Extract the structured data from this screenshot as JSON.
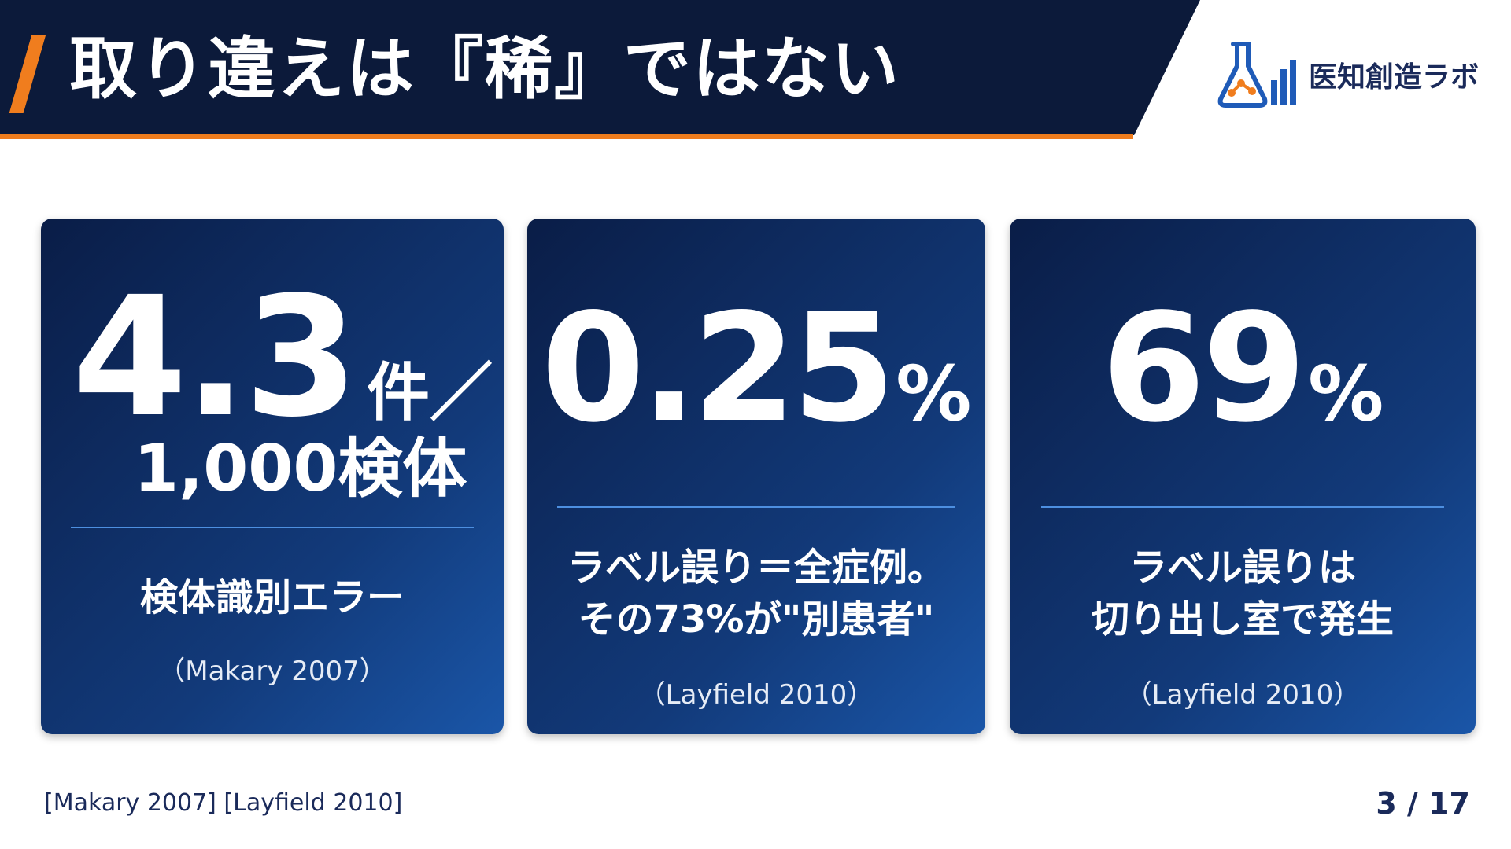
{
  "header": {
    "title": "取り違えは『稀』ではない",
    "accent_color": "#f07d1e",
    "bg_color": "#0c1a3a"
  },
  "brand": {
    "name": "医知創造ラボ",
    "icon": "flask-chart-logo"
  },
  "cards": [
    {
      "stat_number": "4.3",
      "stat_unit": "件／",
      "stat_sub": "1,000検体",
      "description": "検体識別エラー",
      "citation": "（Makary 2007）"
    },
    {
      "stat_number": "0.25",
      "stat_unit": "%",
      "description_line1": "ラベル誤り＝全症例。",
      "description_line2": "その73%が\"別患者\"",
      "citation": "（Layfield 2010）"
    },
    {
      "stat_number": "69",
      "stat_unit": "%",
      "description_line1": "ラベル誤りは",
      "description_line2": "切り出し室で発生",
      "citation": "（Layfield 2010）"
    }
  ],
  "footer": {
    "references": "[Makary 2007] [Layfield 2010]",
    "page": "3 / 17"
  }
}
